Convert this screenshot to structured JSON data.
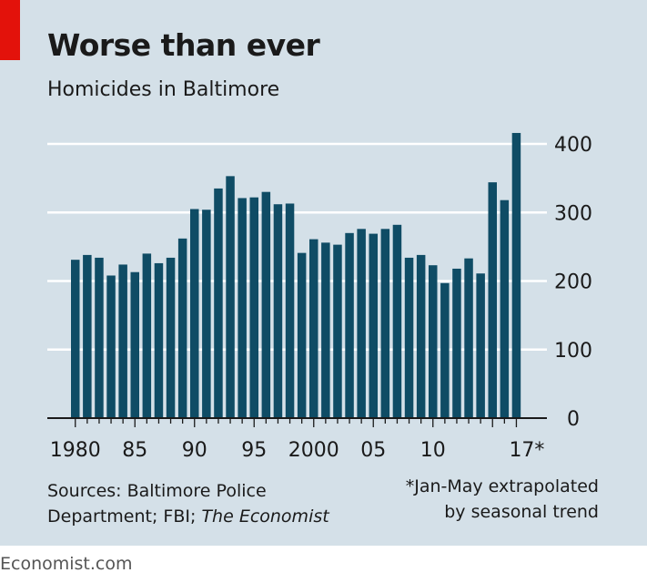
{
  "header": {
    "title": "Worse than ever",
    "subtitle": "Homicides in Baltimore"
  },
  "footer": {
    "sources_line1": "Sources: Baltimore Police",
    "sources_line2_prefix": "Department; FBI; ",
    "sources_line2_italic": "The Economist",
    "note_line1": "*Jan-May extrapolated",
    "note_line2": "by seasonal trend",
    "site": "Economist.com"
  },
  "colors": {
    "background": "#d4e0e8",
    "bar": "#0f4c65",
    "gridline": "#ffffff",
    "accent": "#e3120b"
  },
  "chart_data": {
    "type": "bar",
    "title": "Worse than ever",
    "subtitle": "Homicides in Baltimore",
    "xlabel": "",
    "ylabel": "",
    "ylim": [
      0,
      400
    ],
    "yticks": [
      0,
      100,
      200,
      300,
      400
    ],
    "grid": true,
    "y_axis_side": "right",
    "categories": [
      1980,
      1981,
      1982,
      1983,
      1984,
      1985,
      1986,
      1987,
      1988,
      1989,
      1990,
      1991,
      1992,
      1993,
      1994,
      1995,
      1996,
      1997,
      1998,
      1999,
      2000,
      2001,
      2002,
      2003,
      2004,
      2005,
      2006,
      2007,
      2008,
      2009,
      2010,
      2011,
      2012,
      2013,
      2014,
      2015,
      2016,
      2017
    ],
    "values": [
      231,
      238,
      234,
      208,
      224,
      213,
      240,
      226,
      234,
      262,
      305,
      304,
      335,
      353,
      321,
      322,
      330,
      312,
      313,
      241,
      261,
      256,
      253,
      270,
      276,
      269,
      276,
      282,
      234,
      238,
      223,
      197,
      218,
      233,
      211,
      344,
      318,
      416
    ],
    "xtick_labels": [
      {
        "year": 1980,
        "label": "1980"
      },
      {
        "year": 1985,
        "label": "85"
      },
      {
        "year": 1990,
        "label": "90"
      },
      {
        "year": 1995,
        "label": "95"
      },
      {
        "year": 2000,
        "label": "2000"
      },
      {
        "year": 2005,
        "label": "05"
      },
      {
        "year": 2010,
        "label": "10"
      },
      {
        "year": 2017,
        "label": "17*"
      }
    ]
  }
}
